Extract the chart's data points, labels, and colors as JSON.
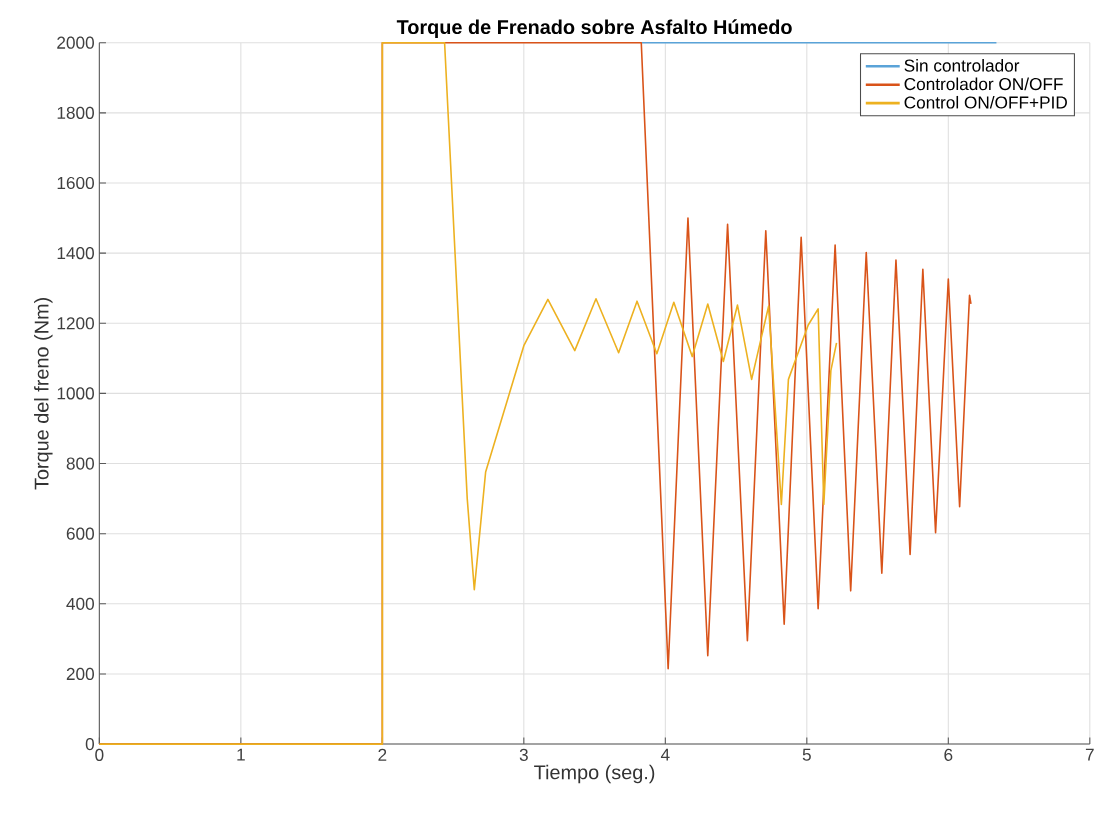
{
  "chart_data": {
    "type": "line",
    "title": "**Torque de Frenado sobre Asfalto Húmedo**",
    "xlabel": "Tiempo (seg.)",
    "ylabel": "Torque del freno (Nm)",
    "xlim": [
      0,
      7
    ],
    "ylim": [
      0,
      2000
    ],
    "xticks": [
      0,
      1,
      2,
      3,
      4,
      5,
      6,
      7
    ],
    "yticks": [
      0,
      200,
      400,
      600,
      800,
      1000,
      1200,
      1400,
      1600,
      1800,
      2000
    ],
    "grid": true,
    "legend": "top right",
    "line_style": "solid",
    "marker": "none",
    "series": [
      {
        "name": "Sin controlador",
        "color": "#5aa3d8",
        "x": [
          3.83,
          6.34
        ],
        "values": [
          2000,
          2000
        ]
      },
      {
        "name": "Controlador ON/OFF",
        "color": "#d95319",
        "x": [
          0,
          2,
          2,
          3.83,
          4.02,
          4.16,
          4.3,
          4.44,
          4.58,
          4.71,
          4.84,
          4.96,
          5.08,
          5.2,
          5.31,
          5.42,
          5.53,
          5.63,
          5.73,
          5.82,
          5.91,
          6.0,
          6.08,
          6.15,
          6.16
        ],
        "values": [
          0,
          0,
          2000,
          2000,
          215,
          1500,
          252,
          1482,
          295,
          1464,
          342,
          1445,
          386,
          1423,
          437,
          1402,
          487,
          1380,
          541,
          1354,
          603,
          1326,
          677,
          1280,
          1255
        ]
      },
      {
        "name": "Control ON/OFF+PID",
        "color": "#edb120",
        "x": [
          0,
          2,
          2,
          2.44,
          2.6,
          2.65,
          2.7,
          2.73,
          3.0,
          3.17,
          3.36,
          3.51,
          3.67,
          3.8,
          3.94,
          4.06,
          4.19,
          4.3,
          4.41,
          4.51,
          4.61,
          4.73,
          4.82,
          4.87,
          5.01,
          5.08,
          5.12,
          5.17,
          5.21
        ],
        "values": [
          0,
          0,
          2000,
          2000,
          700,
          440,
          650,
          776,
          1136,
          1268,
          1122,
          1270,
          1116,
          1263,
          1113,
          1260,
          1105,
          1255,
          1091,
          1252,
          1040,
          1249,
          683,
          1040,
          1195,
          1241,
          683,
          1065,
          1144
        ]
      }
    ]
  }
}
